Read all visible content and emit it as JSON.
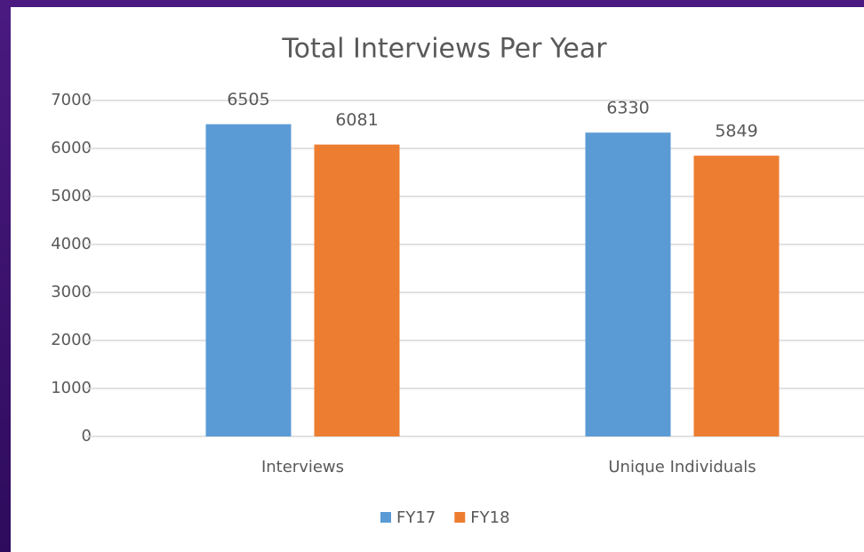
{
  "chart_data": {
    "type": "bar",
    "title": "Total Interviews Per Year",
    "categories": [
      "Interviews",
      "Unique Individuals"
    ],
    "series": [
      {
        "name": "FY17",
        "color": "#5b9bd5",
        "values": [
          6505,
          6330
        ]
      },
      {
        "name": "FY18",
        "color": "#ed7d31",
        "values": [
          6081,
          5849
        ]
      }
    ],
    "ylim": [
      0,
      7000
    ],
    "yticks": [
      0,
      1000,
      2000,
      3000,
      4000,
      5000,
      6000,
      7000
    ],
    "grid": true,
    "legend": "bottom"
  }
}
